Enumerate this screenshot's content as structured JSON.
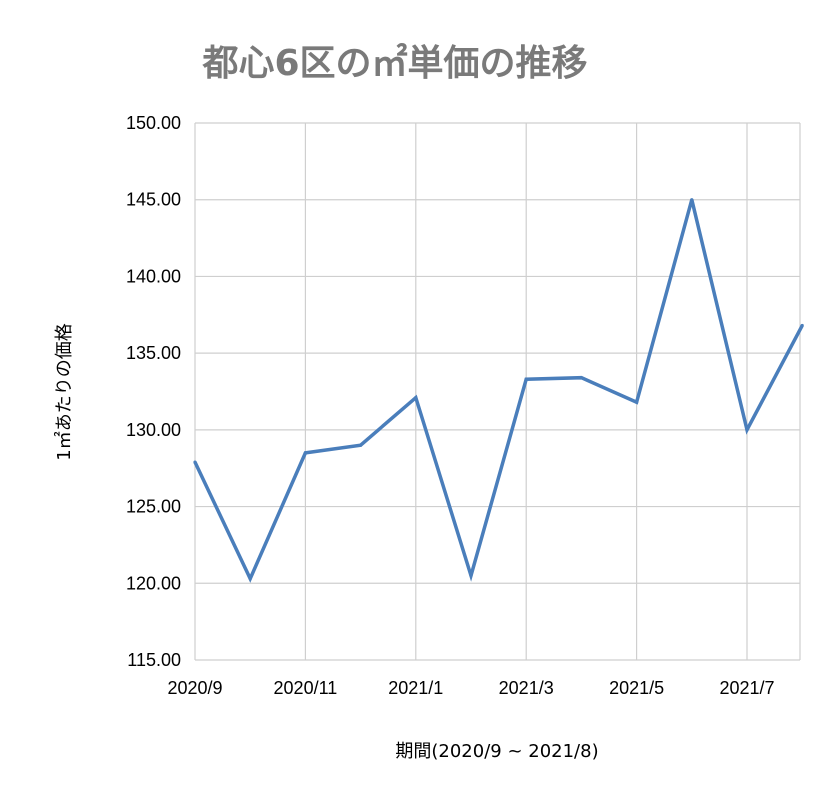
{
  "chart_data": {
    "type": "line",
    "title": "都心6区の㎡単価の推移",
    "xlabel": "期間(2020/9 ~ 2021/8)",
    "ylabel": "1㎡あたりの価格",
    "x": [
      "2020/9",
      "2020/10",
      "2020/11",
      "2020/12",
      "2021/1",
      "2021/2",
      "2021/3",
      "2021/4",
      "2021/5",
      "2021/6",
      "2021/7",
      "2021/8"
    ],
    "x_tick_labels": [
      "2020/9",
      "2020/11",
      "2021/1",
      "2021/3",
      "2021/5",
      "2021/7"
    ],
    "series": [
      {
        "values": [
          127.9,
          120.3,
          128.5,
          129.0,
          132.1,
          120.5,
          133.3,
          133.4,
          131.8,
          145.0,
          130.0,
          136.8
        ],
        "color": "#4a7ebb"
      }
    ],
    "ylim": [
      115,
      150
    ],
    "y_ticks": [
      115,
      120,
      125,
      130,
      135,
      140,
      145,
      150
    ],
    "y_tick_decimals": 2,
    "grid": true,
    "legend": "none"
  }
}
